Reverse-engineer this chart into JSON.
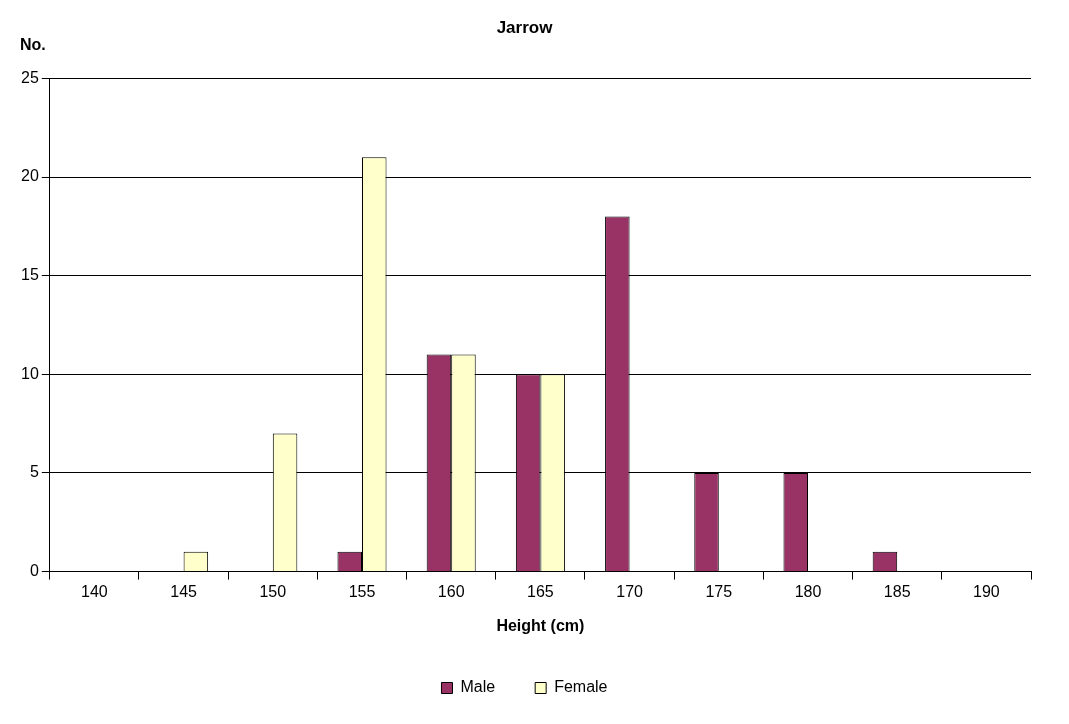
{
  "chart_data": {
    "type": "bar",
    "title": "Jarrow",
    "xlabel": "Height (cm)",
    "ylabel": "No.",
    "categories": [
      "140",
      "145",
      "150",
      "155",
      "160",
      "165",
      "170",
      "175",
      "180",
      "185",
      "190"
    ],
    "series": [
      {
        "name": "Male",
        "color": "#993366",
        "values": [
          0,
          0,
          0,
          1,
          11,
          10,
          18,
          5,
          5,
          1,
          0
        ]
      },
      {
        "name": "Female",
        "color": "#ffffcc",
        "values": [
          0,
          1,
          7,
          21,
          11,
          10,
          0,
          0,
          0,
          0,
          0
        ]
      }
    ],
    "ylim": [
      0,
      25
    ],
    "yticks": [
      0,
      5,
      10,
      15,
      20,
      25
    ],
    "grid": "y",
    "legend": "bottom"
  }
}
